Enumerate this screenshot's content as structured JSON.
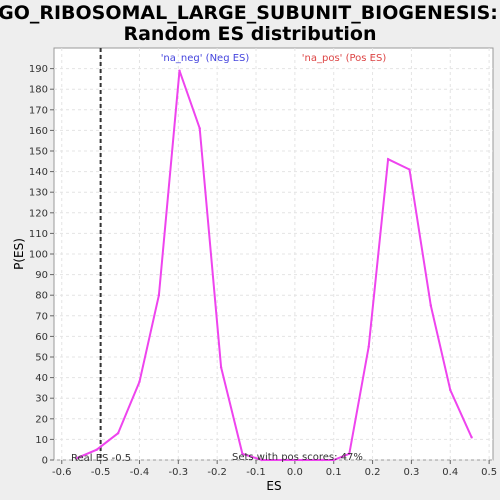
{
  "chart_data": {
    "type": "line",
    "title_line1": "GO_RIBOSOMAL_LARGE_SUBUNIT_BIOGENESIS:",
    "title_line2": "Random ES distribution",
    "xlabel": "ES",
    "ylabel": "P(ES)",
    "xlim": [
      -0.62,
      0.51
    ],
    "ylim": [
      0,
      200
    ],
    "x_ticks": [
      -0.6,
      -0.5,
      -0.4,
      -0.3,
      -0.2,
      -0.1,
      0.0,
      0.1,
      0.2,
      0.3,
      0.4,
      0.5
    ],
    "x_tick_labels": [
      "-0.6",
      "-0.5",
      "-0.4",
      "-0.3",
      "-0.2",
      "-0.1",
      "0.0",
      "0.1",
      "0.2",
      "0.3",
      "0.4",
      "0.5"
    ],
    "y_ticks": [
      0,
      10,
      20,
      30,
      40,
      50,
      60,
      70,
      80,
      90,
      100,
      110,
      120,
      130,
      140,
      150,
      160,
      170,
      180,
      190
    ],
    "y_tick_labels": [
      "0",
      "10",
      "20",
      "30",
      "40",
      "50",
      "60",
      "70",
      "80",
      "90",
      "100",
      "110",
      "120",
      "130",
      "140",
      "150",
      "160",
      "170",
      "180",
      "190"
    ],
    "grid": true,
    "series": [
      {
        "color": "#ee44ee",
        "x": [
          -0.56,
          -0.51,
          -0.455,
          -0.4,
          -0.35,
          -0.297,
          -0.245,
          -0.19,
          -0.135,
          -0.085,
          -0.03,
          0.02,
          0.07,
          0.1,
          0.14,
          0.19,
          0.24,
          0.295,
          0.35,
          0.4,
          0.455
        ],
        "y": [
          1,
          5,
          13,
          38,
          80,
          189,
          161,
          45,
          3,
          0,
          0,
          0,
          0,
          0,
          3,
          55,
          146,
          141,
          75,
          34,
          11
        ]
      }
    ],
    "reference_line": {
      "x": -0.5,
      "color": "#333333"
    },
    "annotations": {
      "neg_label": "'na_neg' (Neg ES)",
      "neg_color": "#4444dd",
      "pos_label": "'na_pos' (Pos ES)",
      "pos_color": "#dd4444",
      "real_es": "Real ES -0.5",
      "sets_pos": "Sets with pos scores: 47%"
    }
  }
}
